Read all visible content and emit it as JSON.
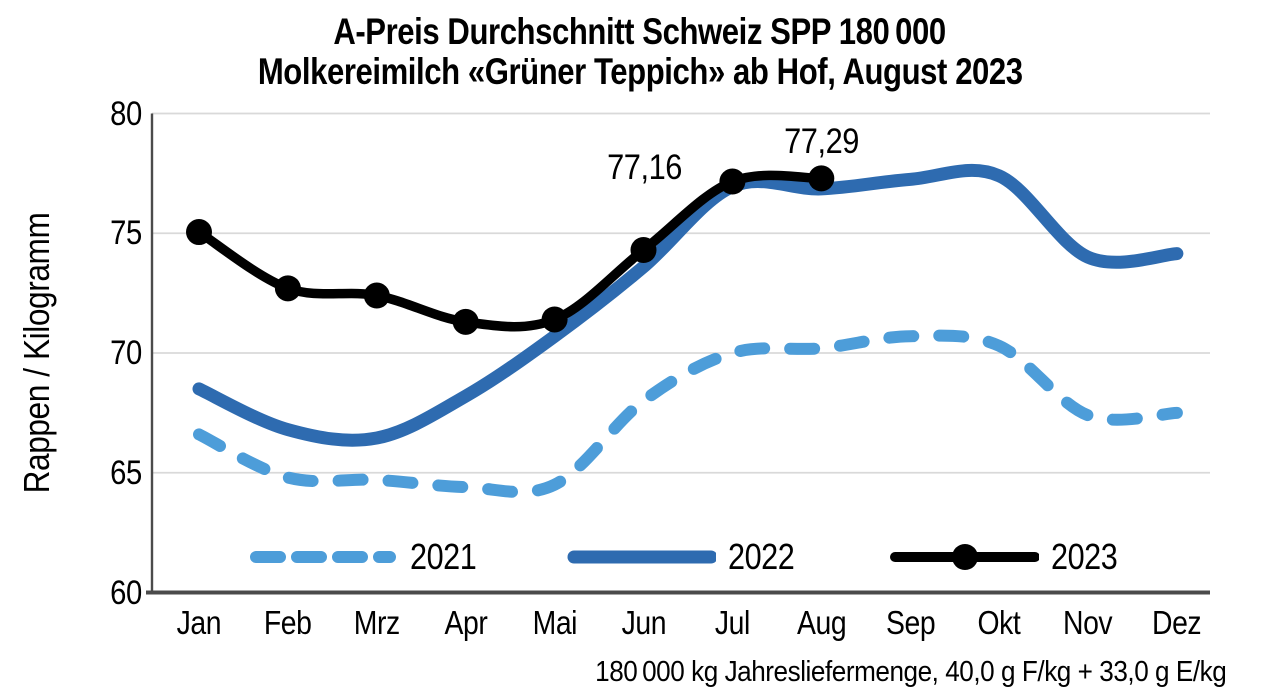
{
  "title": {
    "line1": "A-Preis Durchschnitt Schweiz SPP 180 000",
    "line2": "Molkereimilch «Grüner Teppich» ab Hof, August 2023"
  },
  "footer": {
    "note": "180 000 kg Jahresliefermenge, 40,0 g F/kg + 33,0 g E/kg"
  },
  "chart_data": {
    "type": "line",
    "title": "A-Preis Durchschnitt Schweiz SPP 180 000 Molkereimilch «Grüner Teppich» ab Hof, August 2023",
    "xlabel": "",
    "ylabel": "Rappen / Kilogramm",
    "ylim": [
      60,
      80
    ],
    "yticks": [
      60,
      65,
      70,
      75,
      80
    ],
    "grid": true,
    "legend_position": "bottom-inside",
    "categories": [
      "Jan",
      "Feb",
      "Mrz",
      "Apr",
      "Mai",
      "Jun",
      "Jul",
      "Aug",
      "Sep",
      "Okt",
      "Nov",
      "Dez"
    ],
    "series": [
      {
        "name": "2021",
        "style": "dashed",
        "color": "#4d9dd9",
        "values": [
          66.6,
          64.8,
          64.7,
          64.4,
          64.5,
          68.0,
          70.0,
          70.2,
          70.7,
          70.3,
          67.4,
          67.5
        ]
      },
      {
        "name": "2022",
        "style": "solid",
        "color": "#2e6bb0",
        "values": [
          68.5,
          66.8,
          66.45,
          68.2,
          70.7,
          73.6,
          76.95,
          76.85,
          77.25,
          77.4,
          74.0,
          74.15
        ]
      },
      {
        "name": "2023",
        "style": "solid-markers",
        "color": "#000000",
        "values": [
          75.05,
          72.7,
          72.4,
          71.3,
          71.4,
          74.3,
          77.16,
          77.29
        ],
        "point_labels": [
          {
            "index": 6,
            "text": "77,16"
          },
          {
            "index": 7,
            "text": "77,29"
          }
        ]
      }
    ]
  },
  "colors": {
    "background": "#ffffff",
    "grid": "#d9d9d9",
    "axis": "#4b4b4b",
    "text": "#000000"
  }
}
